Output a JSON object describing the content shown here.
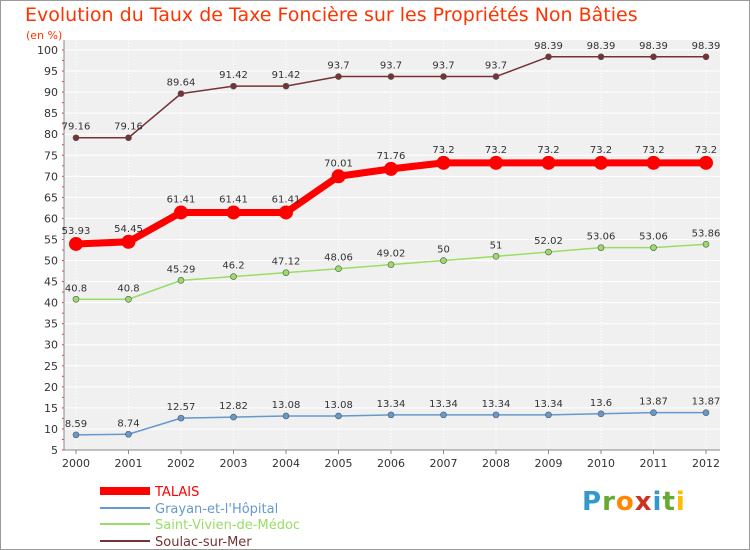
{
  "title": "Evolution du Taux de Taxe Foncière sur les Propriétés Non Bâties",
  "unit_label": "(en %)",
  "brand": {
    "letters": [
      "P",
      "r",
      "o",
      "x",
      "i",
      "t",
      "i"
    ],
    "colors": [
      "#3399cc",
      "#66aa33",
      "#ff8800",
      "#cc3322",
      "#3399cc",
      "#66aa33",
      "#ffbb00"
    ]
  },
  "chart_data": {
    "type": "line",
    "x": [
      "2000",
      "2001",
      "2002",
      "2003",
      "2004",
      "2005",
      "2006",
      "2007",
      "2008",
      "2009",
      "2010",
      "2011",
      "2012"
    ],
    "ylim": [
      5,
      100
    ],
    "yticks": [
      "5",
      "10",
      "15",
      "20",
      "25",
      "30",
      "35",
      "40",
      "45",
      "50",
      "55",
      "60",
      "65",
      "70",
      "75",
      "80",
      "85",
      "90",
      "95",
      "100"
    ],
    "grid": true,
    "legend_position": "bottom-left",
    "series": [
      {
        "name": "TALAIS",
        "color": "#ff0000",
        "values": [
          53.93,
          54.45,
          61.41,
          61.41,
          61.41,
          70.01,
          71.76,
          73.2,
          73.2,
          73.2,
          73.2,
          73.2,
          73.2
        ],
        "labels": [
          "53.93",
          "54.45",
          "61.41",
          "61.41",
          "61.41",
          "70.01",
          "71.76",
          "73.2",
          "73.2",
          "73.2",
          "73.2",
          "73.2",
          "73.2"
        ]
      },
      {
        "name": "Grayan-et-l'Hôpital",
        "color": "#6699cc",
        "values": [
          8.59,
          8.74,
          12.57,
          12.82,
          13.08,
          13.08,
          13.34,
          13.34,
          13.34,
          13.34,
          13.6,
          13.87,
          13.87
        ],
        "labels": [
          "8.59",
          "8.74",
          "12.57",
          "12.82",
          "13.08",
          "13.08",
          "13.34",
          "13.34",
          "13.34",
          "13.34",
          "13.6",
          "13.87",
          "13.87"
        ]
      },
      {
        "name": "Saint-Vivien-de-Médoc",
        "color": "#99dd66",
        "values": [
          40.8,
          40.8,
          45.29,
          46.2,
          47.12,
          48.06,
          49.02,
          50,
          51,
          52.02,
          53.06,
          53.06,
          53.86
        ],
        "labels": [
          "40.8",
          "40.8",
          "45.29",
          "46.2",
          "47.12",
          "48.06",
          "49.02",
          "50",
          "51",
          "52.02",
          "53.06",
          "53.06",
          "53.86"
        ]
      },
      {
        "name": "Soulac-sur-Mer",
        "color": "#773333",
        "values": [
          79.16,
          79.16,
          89.64,
          91.42,
          91.42,
          93.7,
          93.7,
          93.7,
          93.7,
          98.39,
          98.39,
          98.39,
          98.39
        ],
        "labels": [
          "79.16",
          "79.16",
          "89.64",
          "91.42",
          "91.42",
          "93.7",
          "93.7",
          "93.7",
          "93.7",
          "98.39",
          "98.39",
          "98.39",
          "98.39"
        ]
      }
    ]
  }
}
